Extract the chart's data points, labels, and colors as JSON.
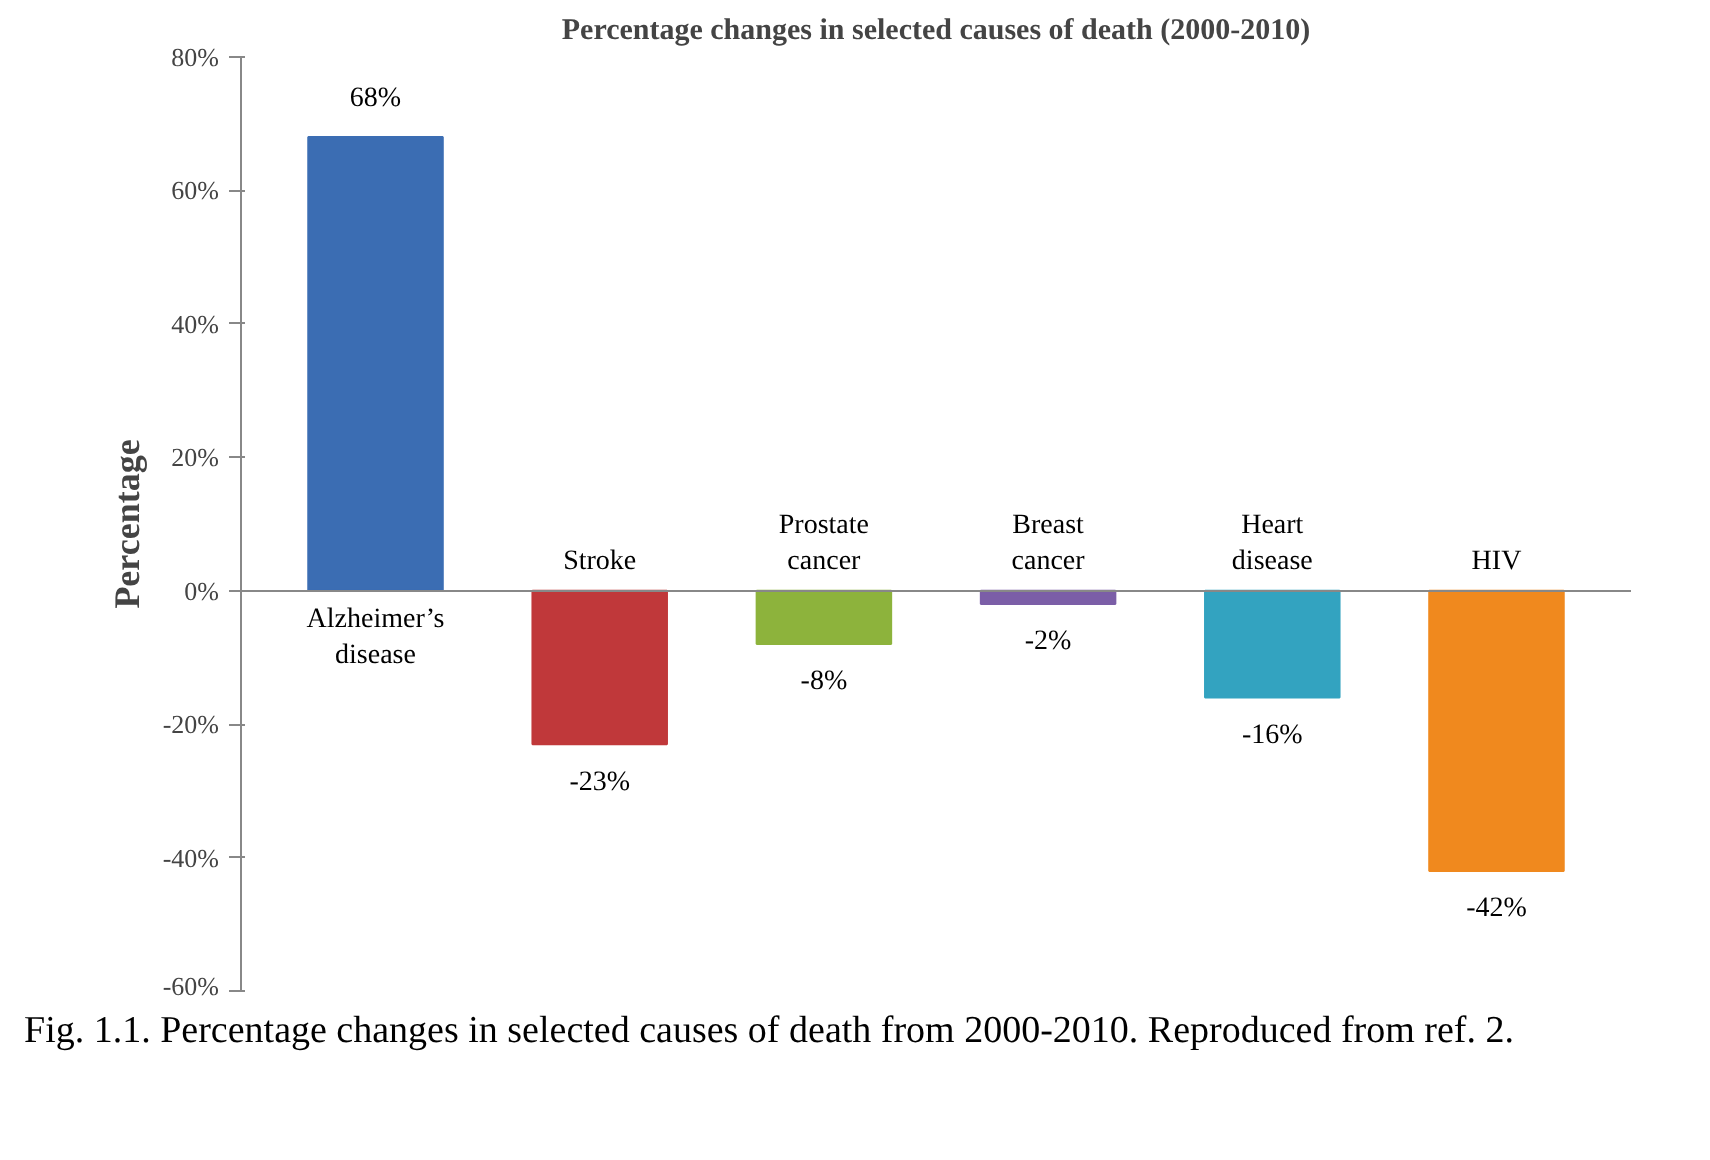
{
  "chart_data": {
    "type": "bar",
    "title": "Percentage changes in selected causes of death (2000-2010)",
    "ylabel": "Percentage",
    "categories": [
      "Alzheimer’s disease",
      "Stroke",
      "Prostate cancer",
      "Breast cancer",
      "Heart disease",
      "HIV"
    ],
    "values": [
      68,
      -23,
      -8,
      -2,
      -16,
      -42
    ],
    "value_labels": [
      "68%",
      "-23%",
      "-8%",
      "-2%",
      "-16%",
      "-42%"
    ],
    "colors": [
      "#3b6db3",
      "#c0383a",
      "#8db33c",
      "#7b5ea7",
      "#33a3c0",
      "#f0891e"
    ],
    "ylim": [
      -60,
      80
    ],
    "yticks": [
      {
        "value": -60,
        "label": "-60%"
      },
      {
        "value": -40,
        "label": "-40%"
      },
      {
        "value": -20,
        "label": "-20%"
      },
      {
        "value": 0,
        "label": "0%"
      },
      {
        "value": 20,
        "label": "20%"
      },
      {
        "value": 40,
        "label": "40%"
      },
      {
        "value": 60,
        "label": "60%"
      },
      {
        "value": 80,
        "label": "80%"
      }
    ],
    "grid": false,
    "annotations": [
      "Fig. 1.1. Percentage changes in selected causes of death from 2000-2010. Reproduced from ref. 2."
    ]
  }
}
